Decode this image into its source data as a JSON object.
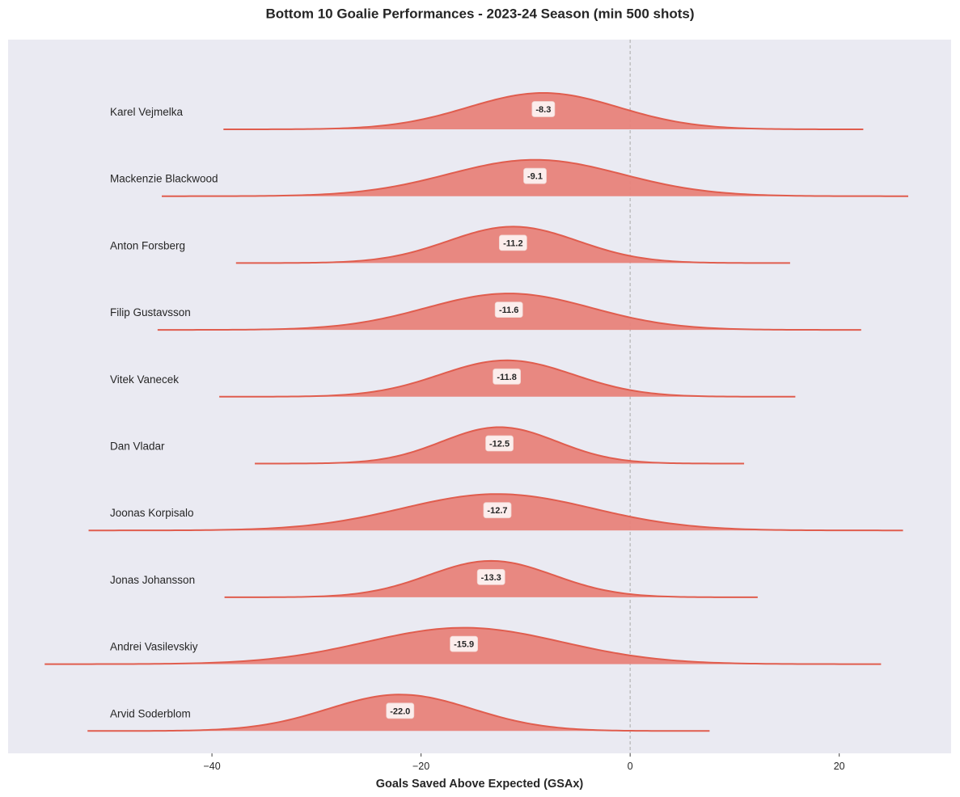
{
  "chart_data": {
    "type": "ridgeline",
    "title": "Bottom 10 Goalie Performances - 2023-24 Season (min 500 shots)",
    "xlabel": "Goals Saved Above Expected (GSAx)",
    "ylabel": "",
    "xlim": [
      -59.5,
      30.7
    ],
    "xticks": [
      -40,
      -20,
      0,
      20
    ],
    "xtick_labels": [
      "−40",
      "−20",
      "0",
      "20"
    ],
    "reference_line": 0,
    "grid": false,
    "colors": {
      "background": "#eaeaf2",
      "fill": "#e8837a",
      "line": "#e05d4e",
      "reference_line": "#b5b5b5"
    },
    "series": [
      {
        "name": "Karel Vejmelka",
        "value": -8.3,
        "value_label": "-8.3",
        "range": [
          -38.9,
          22.3
        ],
        "sd": 7.2
      },
      {
        "name": "Mackenzie Blackwood",
        "value": -9.1,
        "value_label": "-9.1",
        "range": [
          -44.8,
          26.6
        ],
        "sd": 8.3
      },
      {
        "name": "Anton Forsberg",
        "value": -11.2,
        "value_label": "-11.2",
        "range": [
          -37.7,
          15.3
        ],
        "sd": 6.2
      },
      {
        "name": "Filip Gustavsson",
        "value": -11.6,
        "value_label": "-11.6",
        "range": [
          -45.2,
          22.1
        ],
        "sd": 7.9
      },
      {
        "name": "Vitek Vanecek",
        "value": -11.8,
        "value_label": "-11.8",
        "range": [
          -39.3,
          15.8
        ],
        "sd": 6.4
      },
      {
        "name": "Dan Vladar",
        "value": -12.5,
        "value_label": "-12.5",
        "range": [
          -35.9,
          10.9
        ],
        "sd": 5.5
      },
      {
        "name": "Joonas Korpisalo",
        "value": -12.7,
        "value_label": "-12.7",
        "range": [
          -51.8,
          26.1
        ],
        "sd": 9.1
      },
      {
        "name": "Jonas Johansson",
        "value": -13.3,
        "value_label": "-13.3",
        "range": [
          -38.8,
          12.2
        ],
        "sd": 6.0
      },
      {
        "name": "Andrei Vasilevskiy",
        "value": -15.9,
        "value_label": "-15.9",
        "range": [
          -56.0,
          24.0
        ],
        "sd": 9.4
      },
      {
        "name": "Arvid Soderblom",
        "value": -22.0,
        "value_label": "-22.0",
        "range": [
          -51.9,
          7.6
        ],
        "sd": 6.9
      }
    ]
  }
}
